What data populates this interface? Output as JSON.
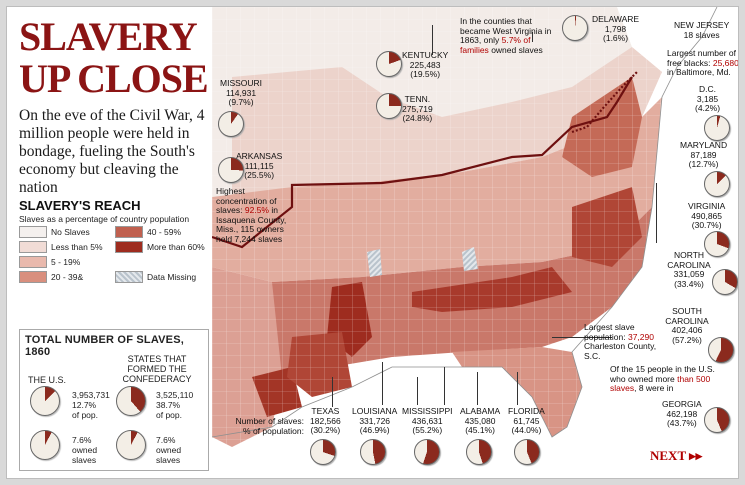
{
  "title_line1": "SLAVERY",
  "title_line2": "UP CLOSE",
  "subhead": "On the eve of the Civil War, 4 million people were held in bondage, fueling the South's economy but cleaving the nation",
  "reach": {
    "title": "SLAVERY'S REACH",
    "subtitle": "Slaves as a percentage of country population",
    "legend": [
      {
        "label": "No Slaves",
        "color": "#f4f0ee"
      },
      {
        "label": "Less than 5%",
        "color": "#f1dcd6"
      },
      {
        "label": "5 - 19%",
        "color": "#e9b9ad"
      },
      {
        "label": "20 - 39&",
        "color": "#d98f7e"
      },
      {
        "label": "40 - 59%",
        "color": "#c0604f"
      },
      {
        "label": "More than 60%",
        "color": "#9e2c1f"
      },
      {
        "label": "Data Missing",
        "color": "#cdd5dd"
      }
    ]
  },
  "totals": {
    "title": "TOTAL NUMBER OF SLAVES, 1860",
    "us_label": "THE U.S.",
    "conf_label": "STATES THAT FORMED THE CONFEDERACY",
    "us_count": "3,953,731",
    "us_pct": "12.7%",
    "us_pop": "of pop.",
    "us_owned_pct": "7.6%",
    "us_owned_label": "owned",
    "us_slaves_label": "slaves",
    "conf_count": "3,525,110",
    "conf_pct": "38.7%",
    "conf_pop": "of pop.",
    "conf_owned_pct": "7.6%",
    "conf_owned_label": "owned",
    "conf_slaves_label": "slaves",
    "us_pct_value": 12.7,
    "conf_pct_value": 38.7,
    "us_owned_value": 7.6,
    "conf_owned_value": 7.6
  },
  "states": [
    {
      "name": "MISSOURI",
      "count": "114,931",
      "pct": "(9.7%)",
      "value": 9.7
    },
    {
      "name": "KENTUCKY",
      "count": "225,483",
      "pct": "(19.5%)",
      "value": 19.5
    },
    {
      "name": "TENN.",
      "count": "275,719",
      "pct": "(24.8%)",
      "value": 24.8
    },
    {
      "name": "ARKANSAS",
      "count": "111,115",
      "pct": "(25.5%)",
      "value": 25.5
    },
    {
      "name": "DELAWARE",
      "count": "1,798",
      "pct": "(1.6%)",
      "value": 1.6
    },
    {
      "name": "NEW JERSEY",
      "count": "18 slaves",
      "pct": "",
      "value": 0.1
    },
    {
      "name": "D.C.",
      "count": "3,185",
      "pct": "(4.2%)",
      "value": 4.2
    },
    {
      "name": "MARYLAND",
      "count": "87,189",
      "pct": "(12.7%)",
      "value": 12.7
    },
    {
      "name": "VIRGINIA",
      "count": "490,865",
      "pct": "(30.7%)",
      "value": 30.7
    },
    {
      "name": "NORTH CAROLINA",
      "count": "331,059",
      "pct": "(33.4%)",
      "value": 33.4
    },
    {
      "name": "SOUTH CAROLINA",
      "count": "402,406",
      "pct": "(57.2%)",
      "value": 57.2
    },
    {
      "name": "GEORGIA",
      "count": "462,198",
      "pct": "(43.7%)",
      "value": 43.7
    },
    {
      "name": "TEXAS",
      "count": "182,566",
      "pct": "(30.2%)",
      "value": 30.2
    },
    {
      "name": "LOUISIANA",
      "count": "331,726",
      "pct": "(46.9%)",
      "value": 46.9
    },
    {
      "name": "MISSISSIPPI",
      "count": "436,631",
      "pct": "(55.2%)",
      "value": 55.2
    },
    {
      "name": "ALABAMA",
      "count": "435,080",
      "pct": "(45.1%)",
      "value": 45.1
    },
    {
      "name": "FLORIDA",
      "count": "61,745",
      "pct": "(44.0%)",
      "value": 44.0
    }
  ],
  "notes": {
    "wv_pre": "In the counties that became West Virginia in 1863, only",
    "wv_red": "5.7% of families",
    "wv_post": "owned slaves",
    "free_pre": "Largest number of free blacks:",
    "free_red": "25,680",
    "free_post": "in Baltimore, Md.",
    "issaquena_pre": "Highest concentration of slaves:",
    "issaquena_red": "92.5%",
    "issaquena_post": "in Issaquena County, Miss., 115 owners held 7,244 slaves",
    "charleston_pre": "Largest slave population:",
    "charleston_red": "37,290",
    "charleston_post": "Charleston County, S.C.",
    "owners_pre": "Of the 15 people in the U.S. who owned more",
    "owners_red": "than 500 slaves",
    "owners_post": ", 8 were in",
    "key_line1": "Number of slaves:",
    "key_line2": "% of population:"
  },
  "next_label": "NEXT ▸▸",
  "colors": {
    "title": "#8b1414",
    "pie_fill": "#8b2a1e",
    "pie_bg": "#f3eee6",
    "accent": "#b00000"
  }
}
